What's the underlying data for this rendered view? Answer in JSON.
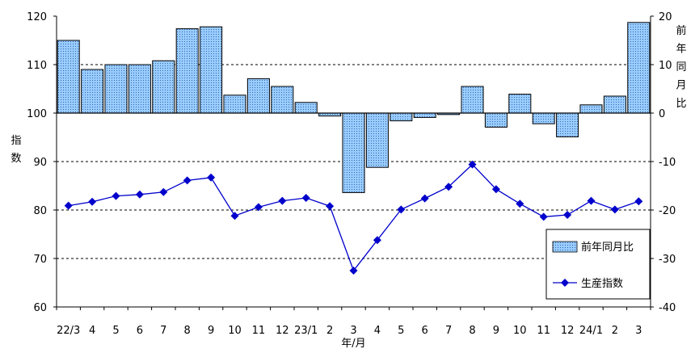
{
  "chart_data": {
    "type": "bar+line",
    "categories": [
      "22/3",
      "4",
      "5",
      "6",
      "7",
      "8",
      "9",
      "10",
      "11",
      "12",
      "23/1",
      "2",
      "3",
      "4",
      "5",
      "6",
      "7",
      "8",
      "9",
      "10",
      "11",
      "12",
      "24/1",
      "2",
      "3"
    ],
    "xlabel": "年/月",
    "ylabel_left": "指数",
    "ylabel_right": "前年同月比",
    "ylim_left": [
      60,
      120
    ],
    "yticks_left": [
      60,
      70,
      80,
      90,
      100,
      110,
      120
    ],
    "ylim_right": [
      -40,
      20
    ],
    "yticks_right": [
      -40,
      -30,
      -20,
      -10,
      0,
      10,
      20
    ],
    "grid": "dotted horizontal at 110, 90, 80, 70; solid baseline at 100",
    "legend_position": "bottom-right",
    "series": [
      {
        "name": "前年同月比",
        "type": "bar",
        "axis": "right",
        "color": "#99ccff",
        "values": [
          15,
          9,
          10,
          10,
          10.8,
          17.4,
          17.8,
          3.7,
          7.1,
          5.5,
          2.2,
          -0.6,
          -16.4,
          -11.2,
          -1.6,
          -0.9,
          -0.3,
          5.5,
          -2.9,
          3.9,
          -2.2,
          -4.9,
          1.7,
          3.5,
          18.7
        ]
      },
      {
        "name": "生産指数",
        "type": "line",
        "axis": "left",
        "color": "#0000cc",
        "values": [
          80.9,
          81.7,
          82.9,
          83.2,
          83.7,
          86.1,
          86.7,
          78.8,
          80.6,
          81.9,
          82.5,
          80.8,
          67.5,
          73.8,
          80.1,
          82.4,
          84.8,
          89.4,
          84.3,
          81.3,
          78.6,
          79.0,
          81.9,
          80.1,
          81.8
        ]
      }
    ]
  }
}
